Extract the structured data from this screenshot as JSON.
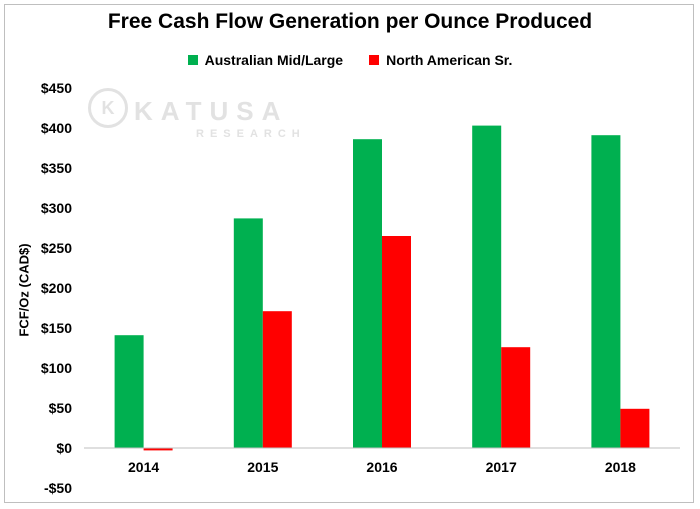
{
  "chart_data": {
    "type": "bar",
    "title": "Free Cash Flow Generation per Ounce Produced",
    "xlabel": "",
    "ylabel": "FCF/Oz (CAD$)",
    "categories": [
      "2014",
      "2015",
      "2016",
      "2017",
      "2018"
    ],
    "series": [
      {
        "name": "Australian Mid/Large",
        "color": "#00b050",
        "values": [
          141,
          287,
          386,
          403,
          391
        ]
      },
      {
        "name": "North American Sr.",
        "color": "#ff0000",
        "values": [
          -3,
          171,
          265,
          126,
          49
        ]
      }
    ],
    "ylim": [
      -50,
      450
    ],
    "yticks": [
      -50,
      0,
      50,
      100,
      150,
      200,
      250,
      300,
      350,
      400,
      450
    ],
    "ytick_labels": [
      "-$50",
      "$0",
      "$50",
      "$100",
      "$150",
      "$200",
      "$250",
      "$300",
      "$350",
      "$400",
      "$450"
    ],
    "grid": false,
    "legend_position": "top"
  },
  "watermark": {
    "mark": "K",
    "name": "KATUSA",
    "sub": "RESEARCH"
  }
}
